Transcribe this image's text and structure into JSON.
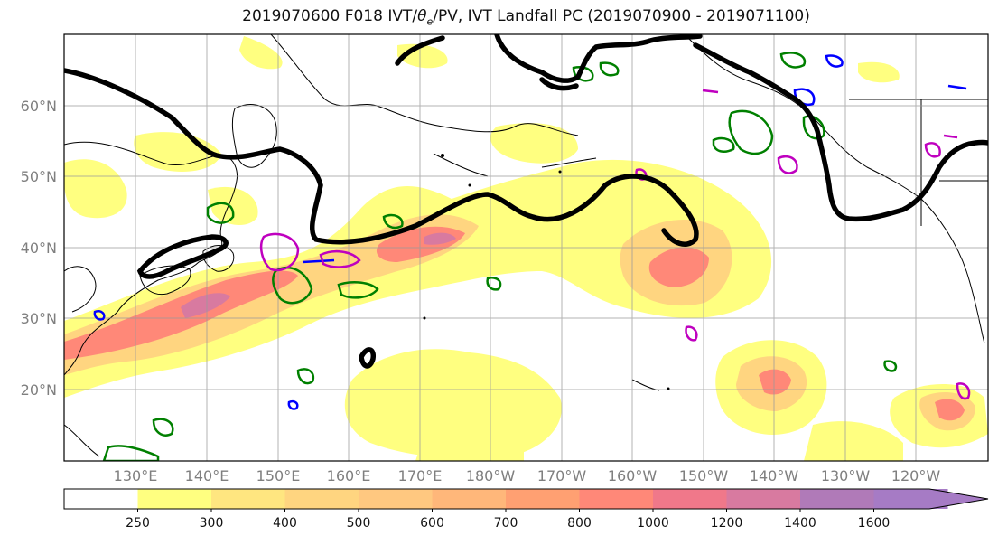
{
  "title": {
    "prefix": "2019070600 F018 IVT/",
    "theta": "θ",
    "theta_sub": "e",
    "suffix": "/PV, IVT Landfall PC (2019070900 - 2019071100)"
  },
  "map": {
    "lat_labels": [
      "60°N",
      "50°N",
      "40°N",
      "30°N",
      "20°N"
    ],
    "lon_labels": [
      "130°E",
      "140°E",
      "150°E",
      "160°E",
      "170°E",
      "180°W",
      "170°W",
      "160°W",
      "150°W",
      "140°W",
      "130°W",
      "120°W"
    ],
    "label_color": "#7f7f7f"
  },
  "colorbar": {
    "ticks": [
      "250",
      "300",
      "400",
      "500",
      "600",
      "700",
      "800",
      "1000",
      "1200",
      "1400",
      "1600"
    ],
    "colors": [
      "#ffffff",
      "#ffff80",
      "#ffe680",
      "#ffd580",
      "#ffc880",
      "#ffb77a",
      "#ffa072",
      "#ff8878",
      "#f0788a",
      "#d87aa0",
      "#b07ab8",
      "#a67bc5"
    ]
  },
  "legend_colors": {
    "theta_e": "#000000",
    "pv_pos": "#008000",
    "pv_neg": "#0000ff",
    "landfall": "#bf00bf"
  }
}
